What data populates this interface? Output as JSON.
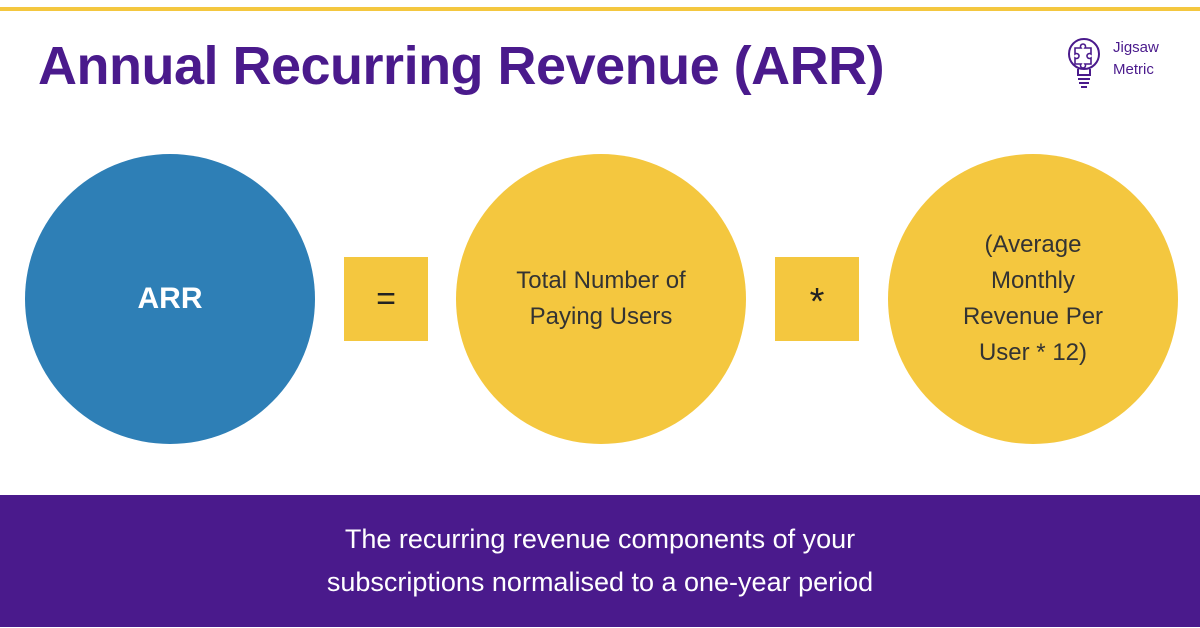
{
  "header": {
    "title": "Annual Recurring Revenue (ARR)"
  },
  "logo": {
    "icon": "puzzle-lightbulb-icon",
    "line1": "Jigsaw",
    "line2": "Metric"
  },
  "formula": {
    "result": {
      "label": "ARR"
    },
    "operator1": "=",
    "term1": {
      "line1": "Total Number of",
      "line2": "Paying Users"
    },
    "operator2": "*",
    "term2": {
      "line1": "(Average",
      "line2": "Monthly",
      "line3": "Revenue Per",
      "line4": "User * 12)"
    }
  },
  "footer": {
    "line1": "The recurring revenue components of your",
    "line2": "subscriptions normalised to a one-year period"
  },
  "colors": {
    "brand_purple": "#4a1a8c",
    "accent_yellow": "#f4c73f",
    "result_blue": "#2e7fb6"
  }
}
